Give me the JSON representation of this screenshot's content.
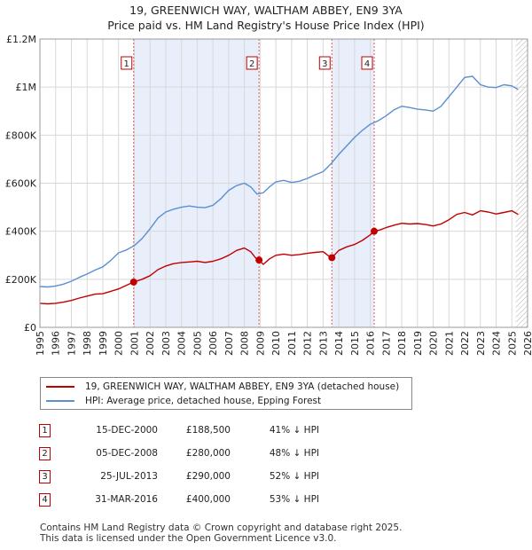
{
  "title_line1": "19, GREENWICH WAY, WALTHAM ABBEY, EN9 3YA",
  "title_line2": "Price paid vs. HM Land Registry's House Price Index (HPI)",
  "colors": {
    "property": "#c00000",
    "hpi": "#5b8fd0",
    "shade": "#e8eefa",
    "marker_line": "#e05a5a"
  },
  "chart_data": {
    "type": "line",
    "title": "Price paid vs. HM Land Registry's House Price Index (HPI)",
    "xlim": [
      1995,
      2026
    ],
    "ylim": [
      0,
      1200000
    ],
    "x_ticks": [
      "1995",
      "1996",
      "1997",
      "1998",
      "1999",
      "2000",
      "2001",
      "2002",
      "2003",
      "2004",
      "2005",
      "2006",
      "2007",
      "2008",
      "2009",
      "2010",
      "2011",
      "2012",
      "2013",
      "2014",
      "2015",
      "2016",
      "2017",
      "2018",
      "2019",
      "2020",
      "2021",
      "2022",
      "2023",
      "2024",
      "2025",
      "2026"
    ],
    "y_ticks": [
      {
        "value": 0,
        "label": "£0"
      },
      {
        "value": 200000,
        "label": "£200K"
      },
      {
        "value": 400000,
        "label": "£400K"
      },
      {
        "value": 600000,
        "label": "£600K"
      },
      {
        "value": 800000,
        "label": "£800K"
      },
      {
        "value": 1000000,
        "label": "£1M"
      },
      {
        "value": 1200000,
        "label": "£1.2M"
      }
    ],
    "shaded_ranges": [
      [
        2000.96,
        2008.93
      ],
      [
        2013.56,
        2016.25
      ]
    ],
    "hatch_from": 2025.25,
    "series": [
      {
        "name": "19, GREENWICH WAY, WALTHAM ABBEY, EN9 3YA (detached house)",
        "x": [
          1995,
          1995.5,
          1996,
          1996.5,
          1997,
          1997.5,
          1998,
          1998.5,
          1999,
          1999.5,
          2000,
          2000.5,
          2000.96,
          2001.5,
          2002,
          2002.5,
          2003,
          2003.5,
          2004,
          2004.5,
          2005,
          2005.5,
          2006,
          2006.5,
          2007,
          2007.5,
          2008,
          2008.4,
          2008.7,
          2008.93,
          2009.2,
          2009.6,
          2010,
          2010.5,
          2011,
          2011.5,
          2012,
          2012.5,
          2013,
          2013.3,
          2013.56,
          2014,
          2014.5,
          2015,
          2015.5,
          2016,
          2016.25,
          2016.6,
          2017,
          2017.5,
          2018,
          2018.5,
          2019,
          2019.5,
          2020,
          2020.5,
          2021,
          2021.5,
          2022,
          2022.5,
          2023,
          2023.5,
          2024,
          2024.5,
          2025,
          2025.4
        ],
        "values": [
          100000,
          98000,
          100000,
          105000,
          112000,
          122000,
          130000,
          138000,
          140000,
          150000,
          160000,
          175000,
          188500,
          200000,
          215000,
          240000,
          255000,
          265000,
          270000,
          272000,
          275000,
          270000,
          275000,
          285000,
          300000,
          320000,
          330000,
          315000,
          290000,
          280000,
          262000,
          285000,
          300000,
          305000,
          300000,
          303000,
          308000,
          312000,
          315000,
          300000,
          290000,
          320000,
          335000,
          345000,
          362000,
          385000,
          400000,
          405000,
          415000,
          425000,
          433000,
          430000,
          432000,
          428000,
          422000,
          430000,
          448000,
          470000,
          478000,
          468000,
          485000,
          480000,
          472000,
          478000,
          485000,
          470000
        ]
      },
      {
        "name": "HPI: Average price, detached house, Epping Forest",
        "x": [
          1995,
          1995.5,
          1996,
          1996.5,
          1997,
          1997.5,
          1998,
          1998.5,
          1999,
          1999.5,
          2000,
          2000.5,
          2001,
          2001.5,
          2002,
          2002.5,
          2003,
          2003.5,
          2004,
          2004.5,
          2005,
          2005.5,
          2006,
          2006.5,
          2007,
          2007.5,
          2008,
          2008.4,
          2008.8,
          2009.2,
          2009.6,
          2010,
          2010.5,
          2011,
          2011.5,
          2012,
          2012.5,
          2013,
          2013.5,
          2014,
          2014.5,
          2015,
          2015.5,
          2016,
          2016.5,
          2017,
          2017.5,
          2018,
          2018.5,
          2019,
          2019.5,
          2020,
          2020.5,
          2021,
          2021.5,
          2022,
          2022.5,
          2023,
          2023.5,
          2024,
          2024.5,
          2025,
          2025.4
        ],
        "values": [
          170000,
          168000,
          172000,
          180000,
          192000,
          208000,
          222000,
          238000,
          252000,
          278000,
          310000,
          322000,
          340000,
          370000,
          410000,
          455000,
          480000,
          492000,
          500000,
          505000,
          500000,
          498000,
          508000,
          535000,
          570000,
          590000,
          600000,
          585000,
          555000,
          560000,
          585000,
          605000,
          612000,
          603000,
          608000,
          620000,
          635000,
          648000,
          680000,
          720000,
          755000,
          790000,
          820000,
          845000,
          860000,
          880000,
          905000,
          920000,
          915000,
          908000,
          905000,
          900000,
          920000,
          960000,
          1000000,
          1040000,
          1045000,
          1010000,
          1000000,
          998000,
          1010000,
          1005000,
          990000
        ]
      }
    ],
    "sales": [
      {
        "label": "1",
        "x": 2000.96,
        "value": 188500
      },
      {
        "label": "2",
        "x": 2008.93,
        "value": 280000
      },
      {
        "label": "3",
        "x": 2013.56,
        "value": 290000
      },
      {
        "label": "4",
        "x": 2016.25,
        "value": 400000
      }
    ]
  },
  "legend": {
    "property": "19, GREENWICH WAY, WALTHAM ABBEY, EN9 3YA (detached house)",
    "hpi": "HPI: Average price, detached house, Epping Forest"
  },
  "sales_table": [
    {
      "num": "1",
      "date": "15-DEC-2000",
      "price": "£188,500",
      "hpi": "41% ↓ HPI"
    },
    {
      "num": "2",
      "date": "05-DEC-2008",
      "price": "£280,000",
      "hpi": "48% ↓ HPI"
    },
    {
      "num": "3",
      "date": "25-JUL-2013",
      "price": "£290,000",
      "hpi": "52% ↓ HPI"
    },
    {
      "num": "4",
      "date": "31-MAR-2016",
      "price": "£400,000",
      "hpi": "53% ↓ HPI"
    }
  ],
  "footer_line1": "Contains HM Land Registry data © Crown copyright and database right 2025.",
  "footer_line2": "This data is licensed under the Open Government Licence v3.0."
}
